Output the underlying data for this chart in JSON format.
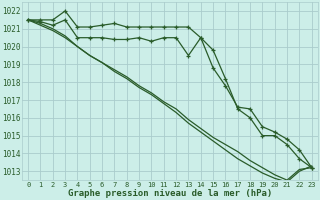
{
  "title": "Graphe pression niveau de la mer (hPa)",
  "bg_color": "#cceee8",
  "grid_color": "#aacccc",
  "line_color": "#2a5c2a",
  "xlim": [
    -0.5,
    23.5
  ],
  "ylim": [
    1012.5,
    1022.5
  ],
  "yticks": [
    1013,
    1014,
    1015,
    1016,
    1017,
    1018,
    1019,
    1020,
    1021,
    1022
  ],
  "xticks": [
    0,
    1,
    2,
    3,
    4,
    5,
    6,
    7,
    8,
    9,
    10,
    11,
    12,
    13,
    14,
    15,
    16,
    17,
    18,
    19,
    20,
    21,
    22,
    23
  ],
  "series1_marked": [
    1021.5,
    1021.5,
    1021.5,
    1022.0,
    1021.1,
    1021.1,
    1021.2,
    1021.3,
    1021.1,
    1021.1,
    1021.1,
    1021.1,
    1021.1,
    1021.1,
    1020.5,
    1019.8,
    1018.2,
    1016.5,
    1016.0,
    1015.0,
    1015.0,
    1014.5,
    1013.7,
    1013.2
  ],
  "series2_marked": [
    1021.5,
    1021.4,
    1021.2,
    1021.5,
    1020.5,
    1020.5,
    1020.5,
    1020.4,
    1020.4,
    1020.5,
    1020.3,
    1020.5,
    1020.5,
    1019.5,
    1020.5,
    1018.8,
    1017.8,
    1016.6,
    1016.5,
    1015.5,
    1015.2,
    1014.8,
    1014.2,
    1013.2
  ],
  "series3_line": [
    1021.5,
    1021.3,
    1021.0,
    1020.6,
    1020.0,
    1019.5,
    1019.1,
    1018.7,
    1018.3,
    1017.8,
    1017.4,
    1016.9,
    1016.5,
    1015.9,
    1015.4,
    1014.9,
    1014.5,
    1014.1,
    1013.6,
    1013.2,
    1012.8,
    1012.5,
    1013.1,
    1013.2
  ],
  "series4_line": [
    1021.5,
    1021.2,
    1020.9,
    1020.5,
    1020.0,
    1019.5,
    1019.1,
    1018.6,
    1018.2,
    1017.7,
    1017.3,
    1016.8,
    1016.3,
    1015.7,
    1015.2,
    1014.7,
    1014.2,
    1013.7,
    1013.3,
    1012.9,
    1012.6,
    1012.4,
    1013.0,
    1013.3
  ]
}
